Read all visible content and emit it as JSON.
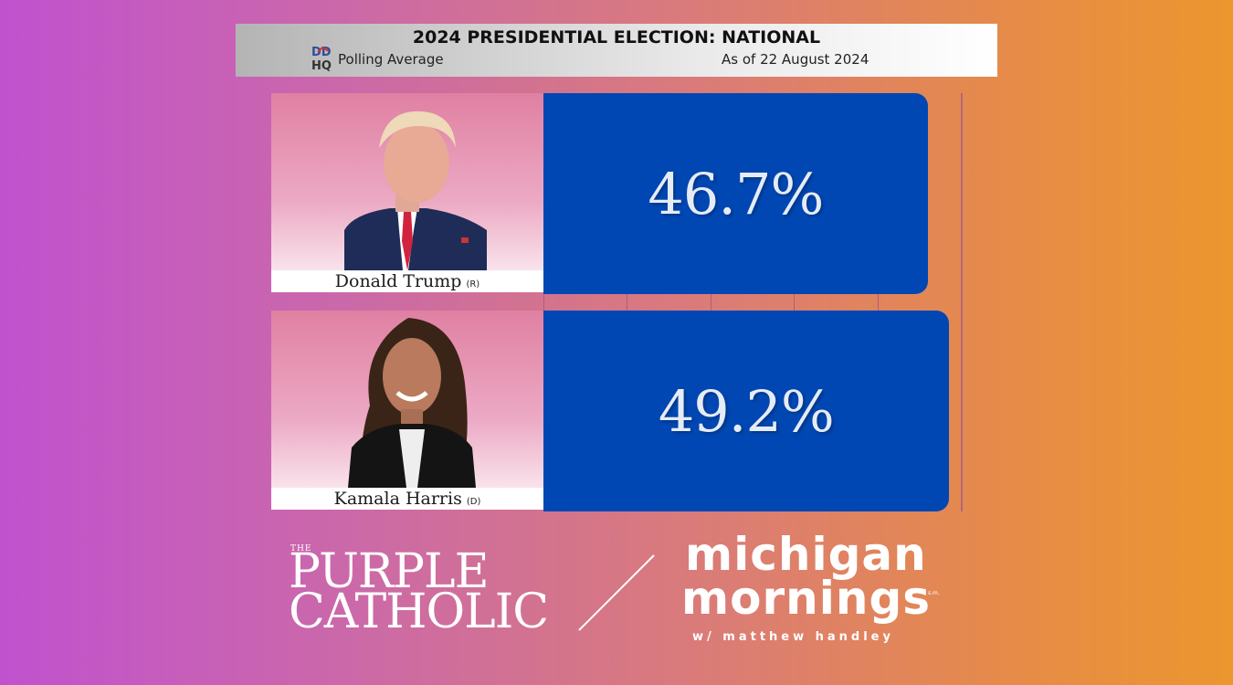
{
  "header": {
    "title": "2024 PRESIDENTIAL ELECTION: NATIONAL",
    "logo_text": "DD HQ",
    "subtitle": "Polling Average",
    "date": "As of 22 August 2024"
  },
  "chart_data": {
    "type": "bar",
    "orientation": "horizontal",
    "title": "2024 PRESIDENTIAL ELECTION: NATIONAL",
    "categories": [
      "Donald Trump (R)",
      "Kamala Harris (D)"
    ],
    "candidates": [
      {
        "name": "Donald Trump",
        "party": "(R)",
        "value": 46.7,
        "label": "46.7%",
        "color": "#0047b3"
      },
      {
        "name": "Kamala Harris",
        "party": "(D)",
        "value": 49.2,
        "label": "49.2%",
        "color": "#0047b3"
      }
    ],
    "values": [
      46.7,
      49.2
    ],
    "xlim": [
      0,
      50
    ],
    "xlabel": "",
    "ylabel": ""
  },
  "branding": {
    "left": {
      "the": "THE",
      "line1": "PURPLE",
      "line2": "CATHOLIC"
    },
    "right": {
      "line1": "michigan",
      "line2": "mornings",
      "line3": "w/ matthew handley",
      "mark": "s.m."
    }
  },
  "colors": {
    "bar": "#0047b3",
    "text_on_bar": "#e6ecf5"
  },
  "icons": [
    "ddhq-logo-icon",
    "trump-photo",
    "harris-photo",
    "divider-slash"
  ]
}
